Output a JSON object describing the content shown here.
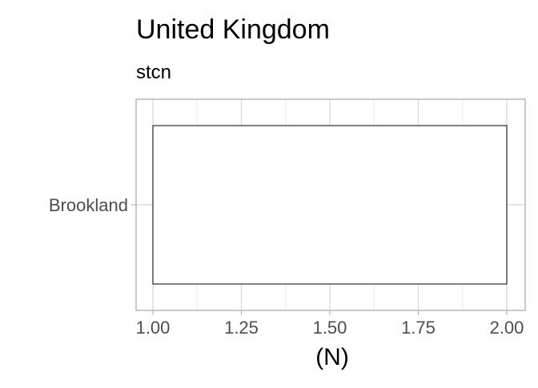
{
  "chart_data": {
    "type": "bar",
    "title": "United Kingdom",
    "subtitle": "stcn",
    "xlabel": "(N)",
    "ylabel": "",
    "categories": [
      "Brookland"
    ],
    "values": [
      2
    ],
    "bar_start": 1,
    "orientation": "horizontal",
    "xlim": [
      1.0,
      2.0
    ],
    "xticks": [
      1.0,
      1.25,
      1.5,
      1.75,
      2.0
    ],
    "xtick_labels": [
      "1.00",
      "1.25",
      "1.50",
      "1.75",
      "2.00"
    ],
    "grid": true,
    "legend": "none",
    "colors": {
      "bar_fill": "#ffffff",
      "bar_stroke": "#000000",
      "grid_major": "#dcdcdc",
      "grid_minor": "#ececec",
      "panel_border": "#b3b3b3",
      "tick_text": "#4d4d4d",
      "title_text": "#000000"
    }
  }
}
